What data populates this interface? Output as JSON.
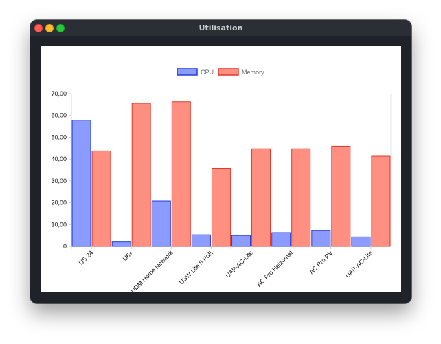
{
  "window": {
    "title": "Utilisation"
  },
  "chart_data": {
    "type": "bar",
    "categories": [
      "US 24",
      "U6+",
      "UDM Home Network",
      "USW Lite 8 PoE",
      "UAP-AC-Lite",
      "AC Pro Heizomat",
      "AC Pro PV",
      "UAP-AC-Lite"
    ],
    "series": [
      {
        "name": "CPU",
        "values": [
          57.8,
          2.0,
          20.8,
          5.3,
          5.0,
          6.3,
          7.2,
          4.3
        ],
        "color": "#8b9bff",
        "border": "#1f3ed8"
      },
      {
        "name": "Memory",
        "values": [
          43.7,
          65.6,
          66.3,
          35.8,
          44.7,
          44.7,
          45.9,
          41.3
        ],
        "color": "#ff8f80",
        "border": "#e0392a"
      }
    ],
    "ylim": [
      0,
      70
    ],
    "yticks": [
      "0",
      "10,00",
      "20,00",
      "30,00",
      "40,00",
      "50,00",
      "60,00",
      "70,00"
    ],
    "legend": "top-center",
    "grid": false
  }
}
